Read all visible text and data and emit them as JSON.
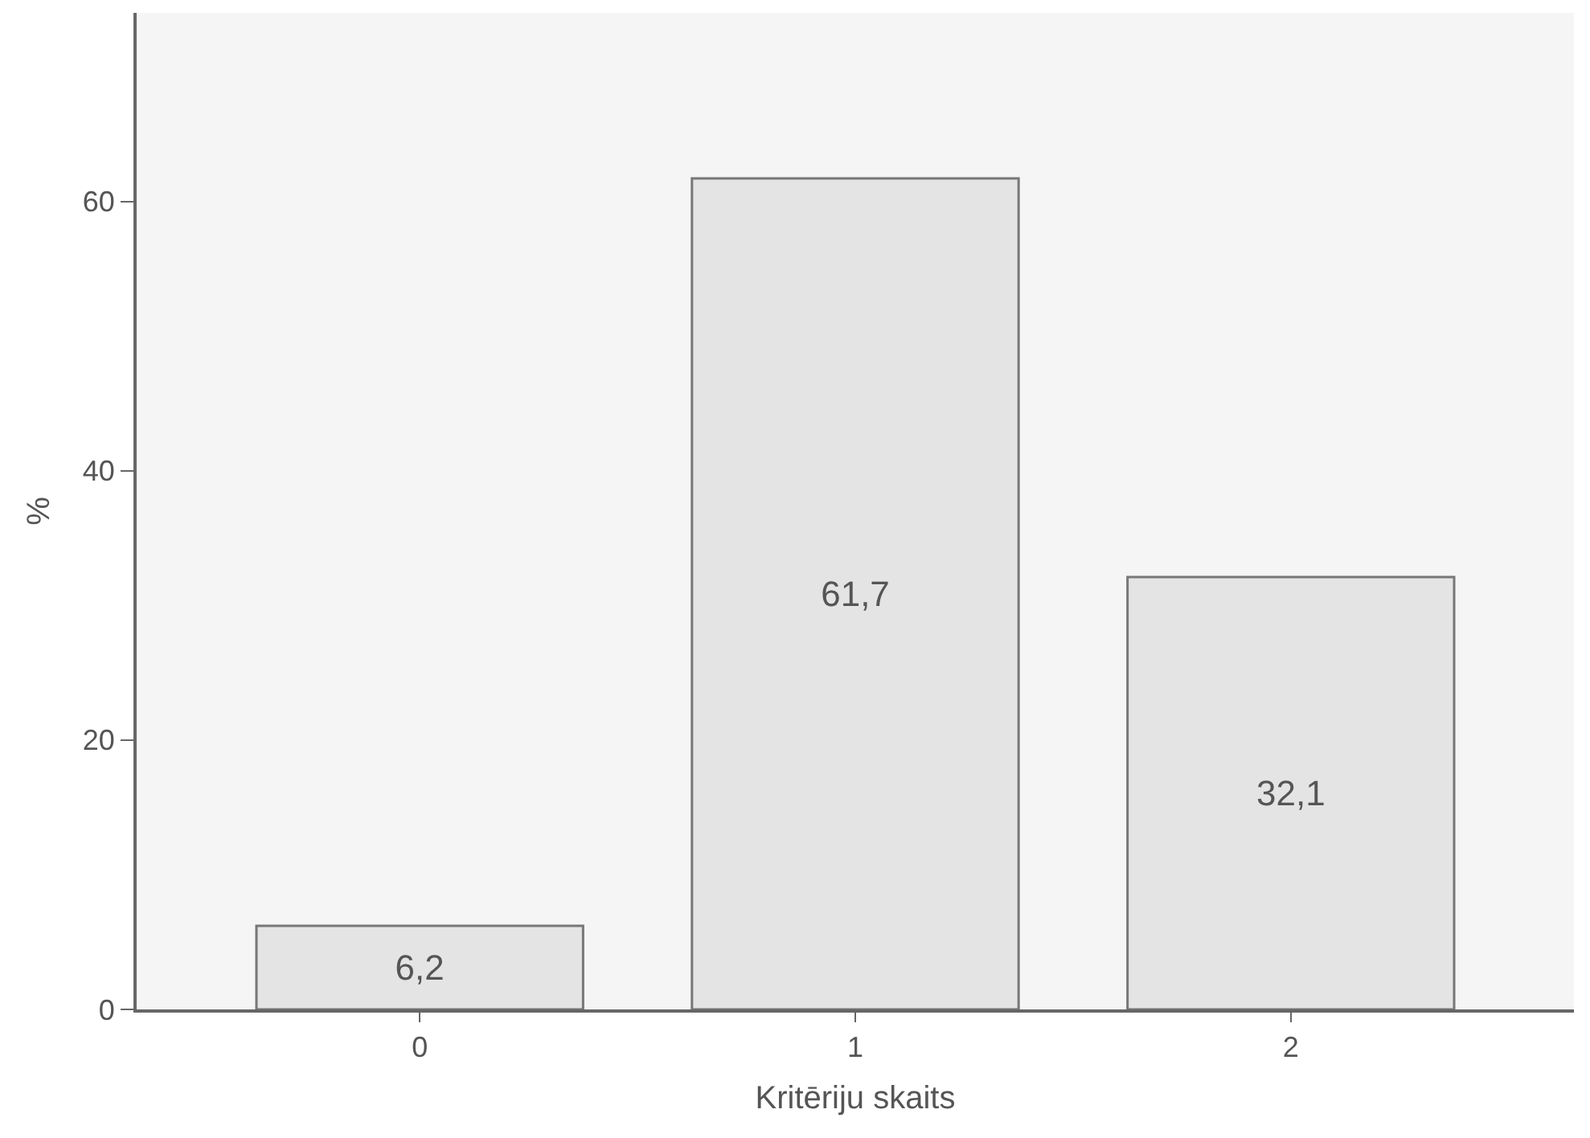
{
  "chart_data": {
    "type": "bar",
    "xlabel": "Kritēriju skaits",
    "ylabel": "%",
    "categories": [
      "0",
      "1",
      "2"
    ],
    "values": [
      6.2,
      61.7,
      32.1
    ],
    "color": "#e4e4e4",
    "value_labels": [
      "6,2",
      "61,7",
      "32,1"
    ],
    "ylim": [
      0,
      74
    ],
    "yticks": [
      0,
      20,
      40,
      60
    ],
    "grid": false,
    "legend": false
  }
}
